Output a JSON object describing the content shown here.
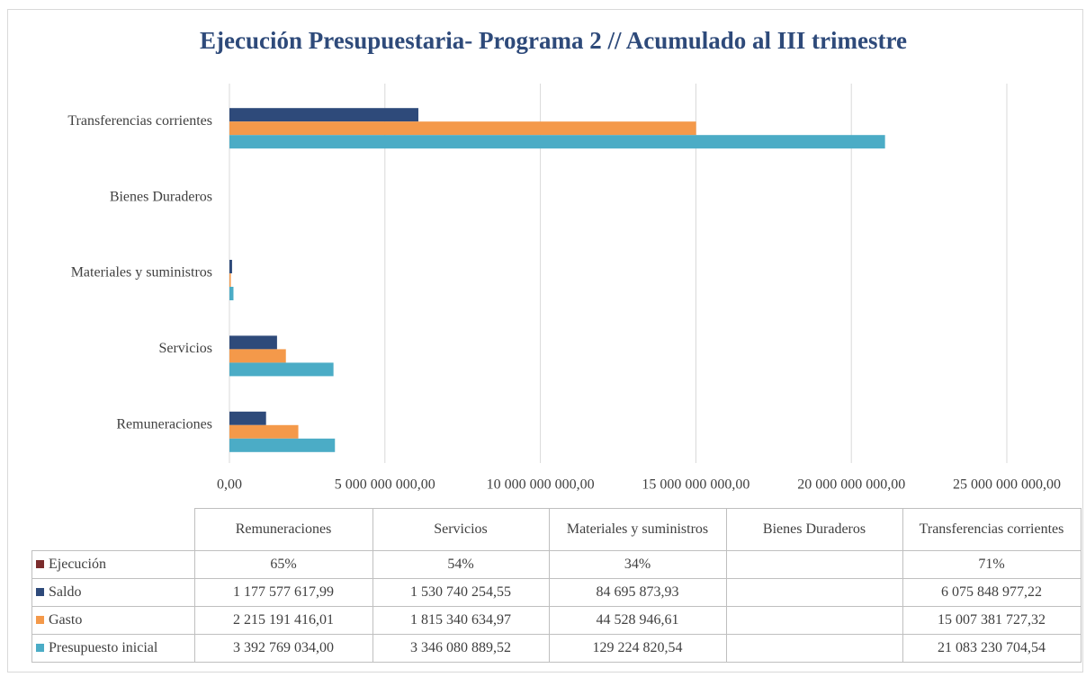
{
  "chart_data": {
    "type": "hbar",
    "title": "Ejecución Presupuestaria- Programa 2 // Acumulado al III trimestre",
    "categories": [
      "Remuneraciones",
      "Servicios",
      "Materiales y suministros",
      "Bienes Duraderos",
      "Transferencias corrientes"
    ],
    "series": [
      {
        "name": "Ejecución",
        "color": "#7b2c2c",
        "values": [
          0.65,
          0.54,
          0.34,
          null,
          0.71
        ],
        "value_labels": [
          "65%",
          "54%",
          "34%",
          null,
          "71%"
        ]
      },
      {
        "name": "Saldo",
        "color": "#2e4a7a",
        "values": [
          1177577617.99,
          1530740254.55,
          84695873.93,
          null,
          6075848977.22
        ],
        "value_labels": [
          "1 177 577 617,99",
          "1 530 740 254,55",
          "84 695 873,93",
          null,
          "6 075 848 977,22"
        ]
      },
      {
        "name": "Gasto",
        "color": "#f4994a",
        "values": [
          2215191416.01,
          1815340634.97,
          44528946.61,
          null,
          15007381727.32
        ],
        "value_labels": [
          "2 215 191 416,01",
          "1 815 340 634,97",
          "44 528 946,61",
          null,
          "15 007 381 727,32"
        ]
      },
      {
        "name": "Presupuesto inicial",
        "color": "#4bacc6",
        "values": [
          3392769034.0,
          3346080889.52,
          129224820.54,
          null,
          21083230704.54
        ],
        "value_labels": [
          "3 392 769 034,00",
          "3 346 080 889,52",
          "129 224 820,54",
          null,
          "21 083 230 704,54"
        ]
      }
    ],
    "xlim": [
      0,
      25000000000
    ],
    "xticks": [
      {
        "value": 0,
        "label": "0,00"
      },
      {
        "value": 5000000000,
        "label": "5 000 000 000,00"
      },
      {
        "value": 10000000000,
        "label": "10 000 000 000,00"
      },
      {
        "value": 15000000000,
        "label": "15 000 000 000,00"
      },
      {
        "value": 20000000000,
        "label": "20 000 000 000,00"
      },
      {
        "value": 25000000000,
        "label": "25 000 000 000,00"
      }
    ],
    "grid": true
  }
}
